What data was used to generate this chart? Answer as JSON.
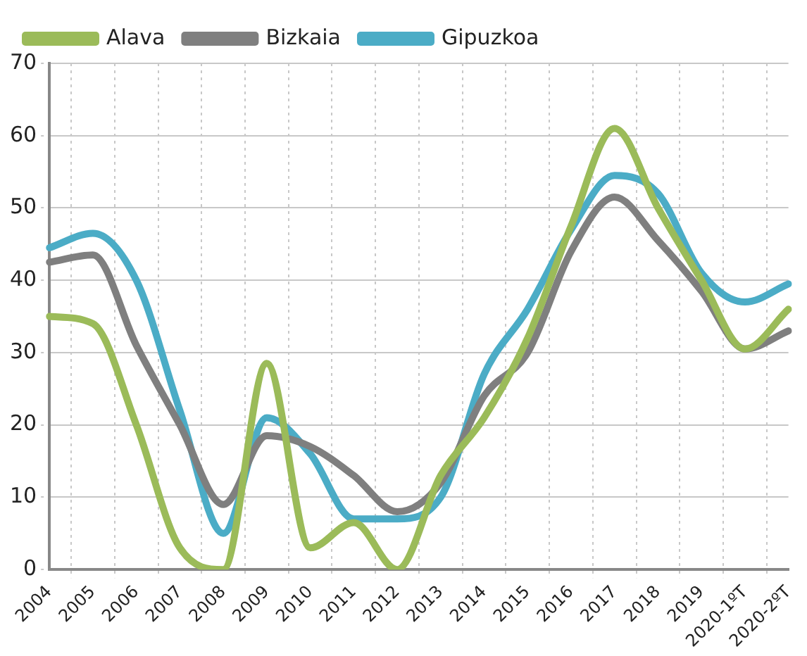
{
  "chart_data": {
    "type": "line",
    "categories": [
      "2004",
      "2005",
      "2006",
      "2007",
      "2008",
      "2009",
      "2010",
      "2011",
      "2012",
      "2013",
      "2014",
      "2015",
      "2016",
      "2017",
      "2018",
      "2019",
      "2020-1ºT",
      "2020-2ºT"
    ],
    "series": [
      {
        "name": "Alava",
        "color": "#9bbb59",
        "values": [
          35,
          34,
          20,
          3,
          0,
          28.5,
          3,
          6.5,
          0,
          13,
          21,
          32,
          47.5,
          61,
          50,
          40,
          30.5,
          36
        ]
      },
      {
        "name": "Bizkaia",
        "color": "#7f7f7f",
        "values": [
          42.5,
          43.5,
          31,
          20,
          9,
          18.5,
          17,
          13,
          8,
          12,
          24,
          30,
          44,
          51.5,
          45.5,
          38.5,
          30.5,
          33
        ]
      },
      {
        "name": "Gipuzkoa",
        "color": "#4bacc6",
        "values": [
          44.5,
          46.5,
          40,
          22,
          5,
          21,
          16,
          7,
          7,
          10,
          27,
          36,
          47,
          54.5,
          52,
          41,
          37,
          39.5
        ]
      }
    ],
    "ylim": [
      0,
      70
    ],
    "yticks": [
      0,
      10,
      20,
      30,
      40,
      50,
      60,
      70
    ],
    "grid": true,
    "legend": "top left",
    "marker": "none",
    "line_style": "solid"
  }
}
